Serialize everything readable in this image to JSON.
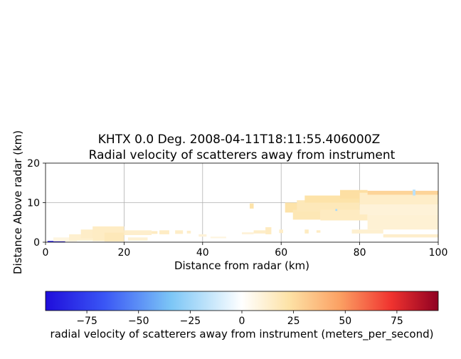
{
  "chart_data": {
    "type": "heatmap",
    "title_line1": "KHTX 0.0 Deg. 2008-04-11T18:11:55.406000Z",
    "title_line2": "Radial velocity of scatterers away from instrument",
    "xlabel": "Distance from radar (km)",
    "ylabel": "Distance Above radar  (km)",
    "xlim": [
      0,
      100
    ],
    "ylim": [
      0,
      20
    ],
    "x_ticks": [
      0,
      20,
      40,
      60,
      80,
      100
    ],
    "x_tick_labels": [
      "0",
      "20",
      "40",
      "60",
      "80",
      "100"
    ],
    "y_ticks": [
      0,
      10,
      20
    ],
    "y_tick_labels": [
      "0",
      "10",
      "20"
    ],
    "grid": true,
    "colorbar": {
      "label": "radial velocity of scatterers away from instrument (meters_per_second)",
      "range": [
        -95,
        95
      ],
      "ticks": [
        -75,
        -50,
        -25,
        0,
        25,
        50,
        75
      ],
      "tick_labels": [
        "−75",
        "−50",
        "−25",
        "0",
        "25",
        "50",
        "75"
      ],
      "colormap": "RdYlBu_r-like (blue → white → red)"
    },
    "echoes": [
      {
        "x0": 0.5,
        "x1": 5,
        "y0": 0.0,
        "y1": 0.3,
        "v": -90
      },
      {
        "x0": 2,
        "x1": 8,
        "y0": 0.2,
        "y1": 1.2,
        "v": 8
      },
      {
        "x0": 6,
        "x1": 12,
        "y0": 0.4,
        "y1": 2.0,
        "v": 12
      },
      {
        "x0": 9,
        "x1": 17,
        "y0": 1.0,
        "y1": 3.2,
        "v": 14
      },
      {
        "x0": 12,
        "x1": 20,
        "y0": 0.3,
        "y1": 4.0,
        "v": 15
      },
      {
        "x0": 15,
        "x1": 20,
        "y0": 0.2,
        "y1": 2.4,
        "v": 18
      },
      {
        "x0": 20,
        "x1": 27,
        "y0": 1.8,
        "y1": 3.0,
        "v": 13
      },
      {
        "x0": 21,
        "x1": 26,
        "y0": 0.4,
        "y1": 1.2,
        "v": 11
      },
      {
        "x0": 27,
        "x1": 28.5,
        "y0": 2.1,
        "y1": 2.8,
        "v": 16
      },
      {
        "x0": 29,
        "x1": 31.5,
        "y0": 2.0,
        "y1": 3.0,
        "v": 15
      },
      {
        "x0": 33,
        "x1": 35,
        "y0": 2.1,
        "y1": 3.0,
        "v": 14
      },
      {
        "x0": 36,
        "x1": 37,
        "y0": 2.2,
        "y1": 2.9,
        "v": 13
      },
      {
        "x0": 39,
        "x1": 41,
        "y0": 1.4,
        "y1": 2.0,
        "v": 10
      },
      {
        "x0": 42,
        "x1": 46,
        "y0": 1.0,
        "y1": 1.4,
        "v": 8
      },
      {
        "x0": 50,
        "x1": 53,
        "y0": 2.0,
        "y1": 2.5,
        "v": 10
      },
      {
        "x0": 52,
        "x1": 53,
        "y0": 8.5,
        "y1": 9.8,
        "v": 22
      },
      {
        "x0": 53,
        "x1": 56,
        "y0": 2.2,
        "y1": 3.0,
        "v": 14
      },
      {
        "x0": 56,
        "x1": 57.5,
        "y0": 2.0,
        "y1": 3.8,
        "v": 16
      },
      {
        "x0": 59.5,
        "x1": 60.5,
        "y0": 2.3,
        "y1": 3.2,
        "v": 14
      },
      {
        "x0": 61,
        "x1": 66,
        "y0": 7.5,
        "y1": 10.0,
        "v": 22
      },
      {
        "x0": 63,
        "x1": 70,
        "y0": 5.7,
        "y1": 8.2,
        "v": 19
      },
      {
        "x0": 64,
        "x1": 80,
        "y0": 7.8,
        "y1": 10.6,
        "v": 18
      },
      {
        "x0": 66,
        "x1": 80,
        "y0": 10.0,
        "y1": 11.8,
        "v": 22
      },
      {
        "x0": 70,
        "x1": 82,
        "y0": 5.5,
        "y1": 8.2,
        "v": 16
      },
      {
        "x0": 75,
        "x1": 82,
        "y0": 11.0,
        "y1": 13.2,
        "v": 24
      },
      {
        "x0": 80,
        "x1": 100,
        "y0": 9.5,
        "y1": 12.5,
        "v": 14
      },
      {
        "x0": 82,
        "x1": 100,
        "y0": 12.0,
        "y1": 13.0,
        "v": 28
      },
      {
        "x0": 80,
        "x1": 100,
        "y0": 7.0,
        "y1": 9.5,
        "v": 10
      },
      {
        "x0": 82,
        "x1": 100,
        "y0": 3.2,
        "y1": 7.0,
        "v": 11
      },
      {
        "x0": 86,
        "x1": 100,
        "y0": 1.2,
        "y1": 2.0,
        "v": 13
      },
      {
        "x0": 78,
        "x1": 86,
        "y0": 2.2,
        "y1": 3.2,
        "v": 12
      },
      {
        "x0": 66,
        "x1": 67,
        "y0": 2.2,
        "y1": 3.2,
        "v": 16
      },
      {
        "x0": 69,
        "x1": 70,
        "y0": 2.4,
        "y1": 3.0,
        "v": 15
      },
      {
        "x0": 93.5,
        "x1": 94.2,
        "y0": 11.8,
        "y1": 13.3,
        "v": -18
      },
      {
        "x0": 73.8,
        "x1": 74.3,
        "y0": 7.9,
        "y1": 8.4,
        "v": -22
      }
    ]
  }
}
